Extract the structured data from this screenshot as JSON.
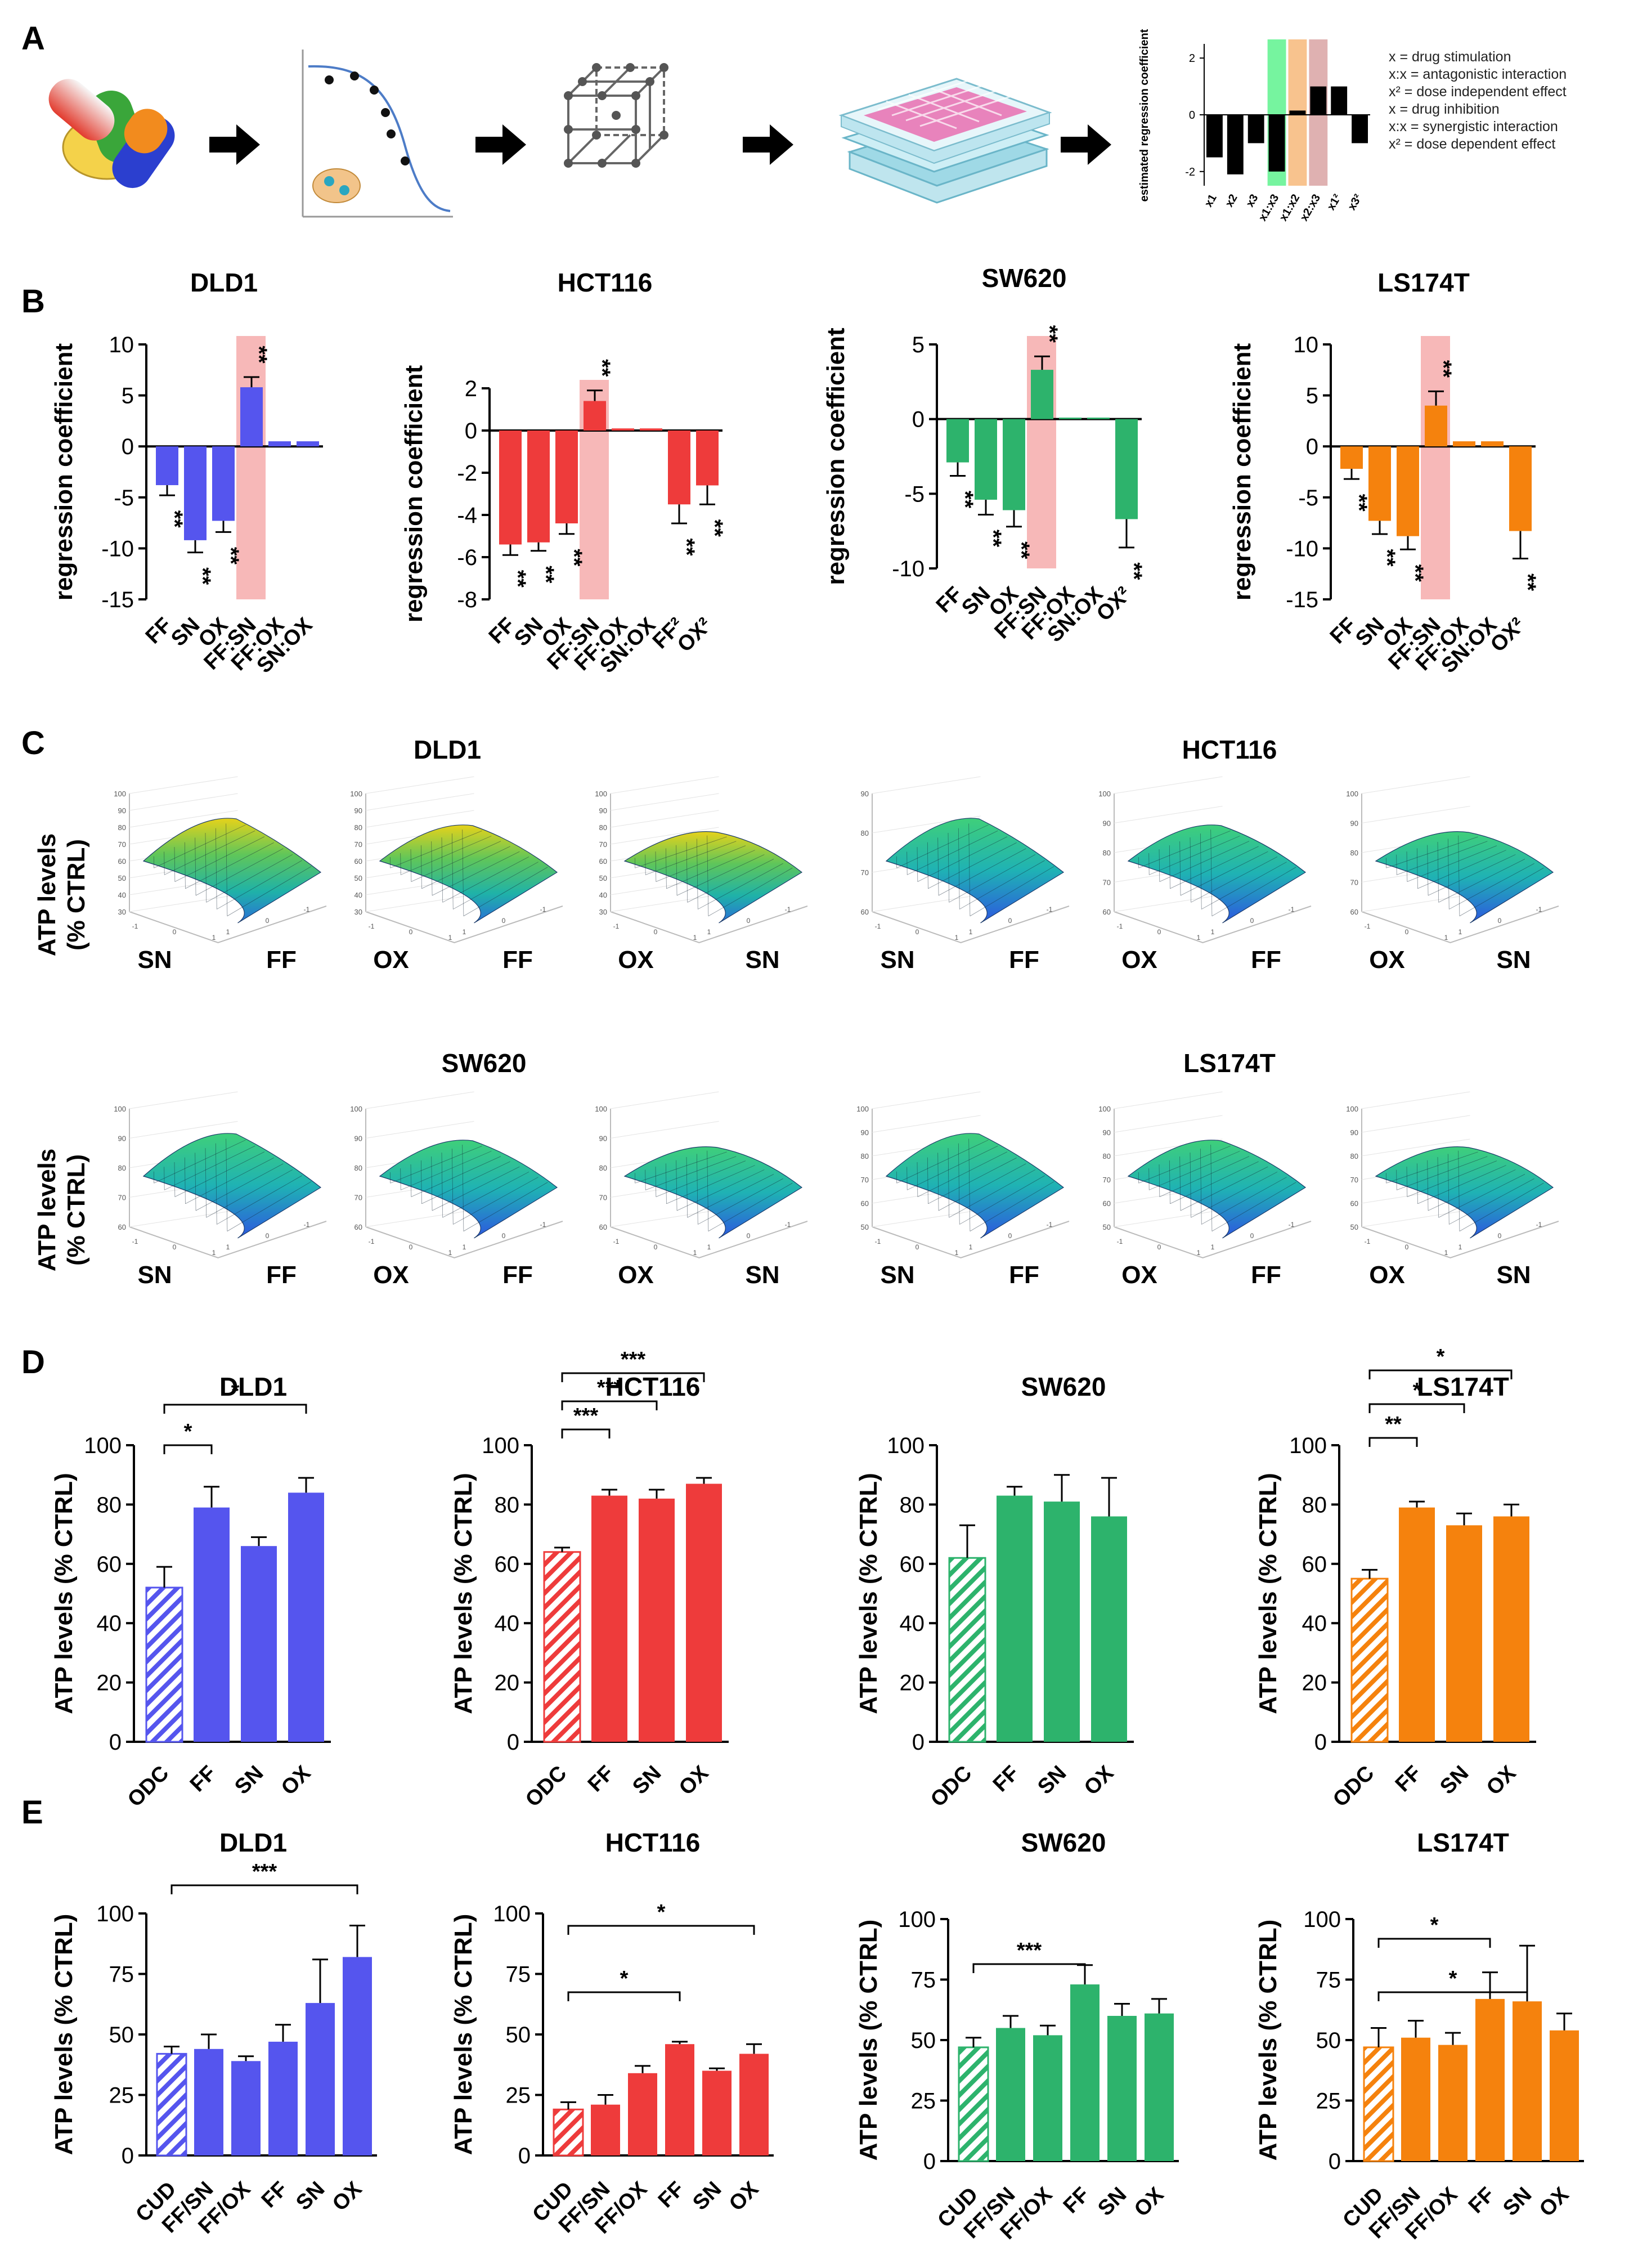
{
  "panels": {
    "A": "A",
    "B": "B",
    "C": "C",
    "D": "D",
    "E": "E"
  },
  "colors": {
    "DLD1": "#5555ee",
    "HCT116": "#ee3b3b",
    "SW620": "#2db36c",
    "LS174T": "#f5820d",
    "highlight": "#f7b8b8"
  },
  "panelA": {
    "ylabel": "estimated regression coefficient",
    "legend": [
      "x = drug stimulation",
      "x:x = antagonistic interaction",
      "x² = dose independent effect",
      "x = drug inhibition",
      "x:x = synergistic interaction",
      "x² = dose dependent effect"
    ],
    "chart_data": {
      "type": "bar",
      "categories": [
        "x1",
        "x2",
        "x3",
        "x1:x3",
        "x1:x2",
        "x2:x3",
        "x1²",
        "x3²"
      ],
      "values": [
        -1.5,
        -2.1,
        -1.0,
        -2.0,
        0.15,
        1.0,
        1.0,
        -1.0
      ],
      "ylim": [
        -2.5,
        2.5
      ],
      "ticks": [
        "2",
        "0",
        "-2"
      ]
    }
  },
  "panelB": {
    "ylabel": "regression coefficient",
    "chart_data": [
      {
        "type": "bar",
        "title": "DLD1",
        "color": "DLD1",
        "categories": [
          "FF",
          "SN",
          "OX",
          "FF:SN",
          "FF:OX",
          "SN:OX"
        ],
        "values": [
          -3.8,
          -9.2,
          -7.3,
          5.8,
          0.5,
          0.5
        ],
        "errors": [
          1.0,
          1.2,
          1.1,
          1.0,
          0,
          0
        ],
        "sig": [
          "**",
          "**",
          "**",
          "**",
          "",
          ""
        ],
        "ylim": [
          -15,
          10
        ],
        "ticks": [
          10,
          5,
          0,
          -5,
          -10,
          -15
        ],
        "highlight": 3
      },
      {
        "type": "bar",
        "title": "HCT116",
        "color": "HCT116",
        "categories": [
          "FF",
          "SN",
          "OX",
          "FF:SN",
          "FF:OX",
          "SN:OX",
          "FF²",
          "OX²"
        ],
        "values": [
          -5.4,
          -5.3,
          -4.4,
          1.4,
          0.1,
          0.1,
          -3.5,
          -2.6
        ],
        "errors": [
          0.5,
          0.4,
          0.5,
          0.5,
          0,
          0,
          0.9,
          0.9
        ],
        "sig": [
          "**",
          "**",
          "**",
          "**",
          "",
          "",
          "**",
          "**"
        ],
        "ylim": [
          -8,
          2
        ],
        "ticks": [
          2,
          0,
          -2,
          -4,
          -6,
          -8
        ],
        "highlight": 3
      },
      {
        "type": "bar",
        "title": "SW620",
        "color": "SW620",
        "categories": [
          "FF",
          "SN",
          "OX",
          "FF:SN",
          "FF:OX",
          "SN:OX",
          "OX²"
        ],
        "values": [
          -2.9,
          -5.4,
          -6.1,
          3.3,
          0.1,
          0.1,
          -6.7
        ],
        "errors": [
          0.9,
          1.0,
          1.1,
          0.9,
          0,
          0,
          1.9
        ],
        "sig": [
          "**",
          "**",
          "**",
          "**",
          "",
          "",
          "**"
        ],
        "ylim": [
          -10,
          5
        ],
        "ticks": [
          5,
          0,
          -5,
          -10
        ],
        "highlight": 3
      },
      {
        "type": "bar",
        "title": "LS174T",
        "color": "LS174T",
        "categories": [
          "FF",
          "SN",
          "OX",
          "FF:SN",
          "FF:OX",
          "SN:OX",
          "OX²"
        ],
        "values": [
          -2.2,
          -7.3,
          -8.8,
          4.0,
          0.5,
          0.5,
          -8.3
        ],
        "errors": [
          1.0,
          1.3,
          1.3,
          1.4,
          0,
          0,
          2.7
        ],
        "sig": [
          "**",
          "**",
          "**",
          "**",
          "",
          "",
          "**"
        ],
        "ylim": [
          -15,
          10
        ],
        "ticks": [
          10,
          5,
          0,
          -5,
          -10,
          -15
        ],
        "highlight": 3
      }
    ]
  },
  "panelC": {
    "ylabel_line1": "ATP levels",
    "ylabel_line2": "(% CTRL)",
    "row1_titles": [
      "DLD1",
      "HCT116"
    ],
    "row2_titles": [
      "SW620",
      "LS174T"
    ],
    "surfaces": [
      {
        "cell": "DLD1",
        "axes": [
          "SN",
          "FF"
        ],
        "zticks": [
          "100",
          "90",
          "80",
          "70",
          "60",
          "50",
          "40",
          "30"
        ],
        "xticks": [
          "-1",
          "0",
          "1"
        ],
        "yticks": [
          "1",
          "0",
          "-1"
        ]
      },
      {
        "cell": "DLD1",
        "axes": [
          "OX",
          "FF"
        ],
        "zticks": [
          "100",
          "90",
          "80",
          "70",
          "60",
          "50",
          "40",
          "30"
        ],
        "xticks": [
          "-1",
          "0",
          "1"
        ],
        "yticks": [
          "1",
          "0",
          "-1"
        ]
      },
      {
        "cell": "DLD1",
        "axes": [
          "OX",
          "SN"
        ],
        "zticks": [
          "100",
          "90",
          "80",
          "70",
          "60",
          "50",
          "40",
          "30"
        ],
        "xticks": [
          "-1",
          "0",
          "1"
        ],
        "yticks": [
          "1",
          "0",
          "-1"
        ]
      },
      {
        "cell": "HCT116",
        "axes": [
          "SN",
          "FF"
        ],
        "zticks": [
          "90",
          "80",
          "70",
          "60"
        ],
        "xticks": [
          "-1",
          "0",
          "1"
        ],
        "yticks": [
          "1",
          "0",
          "-1"
        ]
      },
      {
        "cell": "HCT116",
        "axes": [
          "OX",
          "FF"
        ],
        "zticks": [
          "100",
          "90",
          "80",
          "70",
          "60"
        ],
        "xticks": [
          "-1",
          "0",
          "1"
        ],
        "yticks": [
          "1",
          "0",
          "-1"
        ]
      },
      {
        "cell": "HCT116",
        "axes": [
          "OX",
          "SN"
        ],
        "zticks": [
          "100",
          "90",
          "80",
          "70",
          "60"
        ],
        "xticks": [
          "-1",
          "0",
          "1"
        ],
        "yticks": [
          "1",
          "0",
          "-1"
        ]
      },
      {
        "cell": "SW620",
        "axes": [
          "SN",
          "FF"
        ],
        "zticks": [
          "100",
          "90",
          "80",
          "70",
          "60"
        ],
        "xticks": [
          "-1",
          "0",
          "1"
        ],
        "yticks": [
          "1",
          "0",
          "-1"
        ]
      },
      {
        "cell": "SW620",
        "axes": [
          "OX",
          "FF"
        ],
        "zticks": [
          "100",
          "90",
          "80",
          "70",
          "60"
        ],
        "xticks": [
          "-1",
          "0",
          "1"
        ],
        "yticks": [
          "1",
          "0",
          "-1"
        ]
      },
      {
        "cell": "SW620",
        "axes": [
          "OX",
          "SN"
        ],
        "zticks": [
          "100",
          "90",
          "80",
          "70",
          "60"
        ],
        "xticks": [
          "-1",
          "0",
          "1"
        ],
        "yticks": [
          "1",
          "0",
          "-1"
        ]
      },
      {
        "cell": "LS174T",
        "axes": [
          "SN",
          "FF"
        ],
        "zticks": [
          "100",
          "90",
          "80",
          "70",
          "60",
          "50"
        ],
        "xticks": [
          "-1",
          "0",
          "1"
        ],
        "yticks": [
          "1",
          "0",
          "-1"
        ]
      },
      {
        "cell": "LS174T",
        "axes": [
          "OX",
          "FF"
        ],
        "zticks": [
          "100",
          "90",
          "80",
          "70",
          "60",
          "50"
        ],
        "xticks": [
          "-1",
          "0",
          "1"
        ],
        "yticks": [
          "1",
          "0",
          "-1"
        ]
      },
      {
        "cell": "LS174T",
        "axes": [
          "OX",
          "SN"
        ],
        "zticks": [
          "100",
          "90",
          "80",
          "70",
          "60",
          "50"
        ],
        "xticks": [
          "-1",
          "0",
          "1"
        ],
        "yticks": [
          "1",
          "0",
          "-1"
        ]
      }
    ]
  },
  "panelD": {
    "ylabel": "ATP levels (% CTRL)",
    "chart_data": [
      {
        "type": "bar",
        "title": "DLD1",
        "color": "DLD1",
        "categories": [
          "ODC",
          "FF",
          "SN",
          "OX"
        ],
        "values": [
          52,
          79,
          66,
          84
        ],
        "errors": [
          7,
          7,
          3,
          5
        ],
        "ylim": [
          0,
          100
        ],
        "ticks": [
          0,
          20,
          40,
          60,
          80,
          100
        ],
        "brackets": [
          {
            "from": 0,
            "to": 1,
            "label": "*"
          },
          {
            "from": 0,
            "to": 3,
            "label": "*"
          }
        ]
      },
      {
        "type": "bar",
        "title": "HCT116",
        "color": "HCT116",
        "categories": [
          "ODC",
          "FF",
          "SN",
          "OX"
        ],
        "values": [
          64,
          83,
          82,
          87
        ],
        "errors": [
          1.5,
          2,
          3,
          2
        ],
        "ylim": [
          0,
          100
        ],
        "ticks": [
          0,
          20,
          40,
          60,
          80,
          100
        ],
        "brackets": [
          {
            "from": 0,
            "to": 1,
            "label": "***"
          },
          {
            "from": 0,
            "to": 2,
            "label": "***"
          },
          {
            "from": 0,
            "to": 3,
            "label": "***"
          }
        ]
      },
      {
        "type": "bar",
        "title": "SW620",
        "color": "SW620",
        "categories": [
          "ODC",
          "FF",
          "SN",
          "OX"
        ],
        "values": [
          62,
          83,
          81,
          76
        ],
        "errors": [
          11,
          3,
          9,
          13
        ],
        "ylim": [
          0,
          100
        ],
        "ticks": [
          0,
          20,
          40,
          60,
          80,
          100
        ],
        "brackets": []
      },
      {
        "type": "bar",
        "title": "LS174T",
        "color": "LS174T",
        "categories": [
          "ODC",
          "FF",
          "SN",
          "OX"
        ],
        "values": [
          55,
          79,
          73,
          76
        ],
        "errors": [
          3,
          2,
          4,
          4
        ],
        "ylim": [
          0,
          100
        ],
        "ticks": [
          0,
          20,
          40,
          60,
          80,
          100
        ],
        "brackets": [
          {
            "from": 0,
            "to": 1,
            "label": "**"
          },
          {
            "from": 0,
            "to": 2,
            "label": "*"
          },
          {
            "from": 0,
            "to": 3,
            "label": "*"
          }
        ]
      }
    ]
  },
  "panelE": {
    "ylabel": "ATP levels (% CTRL)",
    "chart_data": [
      {
        "type": "bar",
        "title": "DLD1",
        "color": "DLD1",
        "categories": [
          "CUD",
          "FF/SN",
          "FF/OX",
          "FF",
          "SN",
          "OX"
        ],
        "values": [
          42,
          44,
          39,
          47,
          63,
          82
        ],
        "errors": [
          3,
          6,
          2,
          7,
          18,
          13
        ],
        "ylim": [
          0,
          100
        ],
        "ticks": [
          0,
          25,
          50,
          75,
          100
        ],
        "brackets": [
          {
            "from": 0,
            "to": 5,
            "label": "***"
          }
        ]
      },
      {
        "type": "bar",
        "title": "HCT116",
        "color": "HCT116",
        "categories": [
          "CUD",
          "FF/SN",
          "FF/OX",
          "FF",
          "SN",
          "OX"
        ],
        "values": [
          19,
          21,
          34,
          46,
          35,
          42
        ],
        "errors": [
          3,
          4,
          3,
          1,
          1,
          4
        ],
        "ylim": [
          0,
          100
        ],
        "ticks": [
          0,
          25,
          50,
          75,
          100
        ],
        "brackets": [
          {
            "from": 0,
            "to": 3,
            "label": "*"
          },
          {
            "from": 0,
            "to": 5,
            "label": "*"
          }
        ]
      },
      {
        "type": "bar",
        "title": "SW620",
        "color": "SW620",
        "categories": [
          "CUD",
          "FF/SN",
          "FF/OX",
          "FF",
          "SN",
          "OX"
        ],
        "values": [
          47,
          55,
          52,
          73,
          60,
          61
        ],
        "errors": [
          4,
          5,
          4,
          8,
          5,
          6
        ],
        "ylim": [
          0,
          100
        ],
        "ticks": [
          0,
          25,
          50,
          75,
          100
        ],
        "brackets": [
          {
            "from": 0,
            "to": 3,
            "label": "***"
          }
        ]
      },
      {
        "type": "bar",
        "title": "LS174T",
        "color": "LS174T",
        "categories": [
          "CUD",
          "FF/SN",
          "FF/OX",
          "FF",
          "SN",
          "OX"
        ],
        "values": [
          47,
          51,
          48,
          67,
          66,
          54
        ],
        "errors": [
          8,
          7,
          5,
          11,
          23,
          7
        ],
        "ylim": [
          0,
          100
        ],
        "ticks": [
          0,
          25,
          50,
          75,
          100
        ],
        "brackets": [
          {
            "from": 0,
            "to": 3,
            "label": "*"
          },
          {
            "from": 0,
            "to": 4,
            "label": "*"
          }
        ]
      }
    ]
  }
}
